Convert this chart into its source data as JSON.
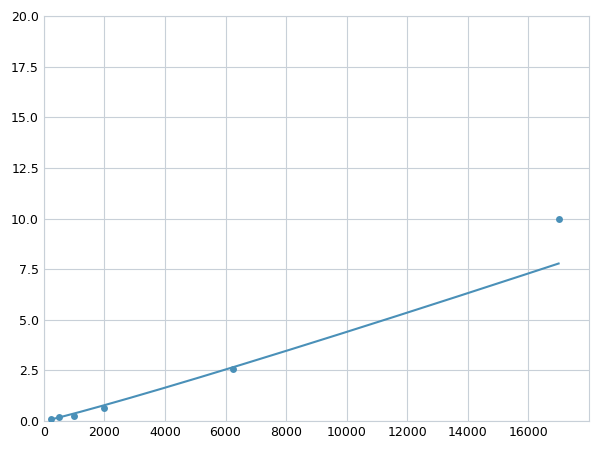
{
  "x_points": [
    250,
    500,
    1000,
    2000,
    6250,
    17000
  ],
  "y_points": [
    0.12,
    0.18,
    0.25,
    0.65,
    2.55,
    10.0
  ],
  "marker_indices": [
    0,
    1,
    2,
    3,
    4,
    5
  ],
  "line_color": "#4a90b8",
  "marker_color": "#4a90b8",
  "marker_size": 5,
  "xlim": [
    0,
    18000
  ],
  "ylim": [
    0,
    20.0
  ],
  "xticks": [
    0,
    2000,
    4000,
    6000,
    8000,
    10000,
    12000,
    14000,
    16000
  ],
  "yticks": [
    0.0,
    2.5,
    5.0,
    7.5,
    10.0,
    12.5,
    15.0,
    17.5,
    20.0
  ],
  "grid_color": "#c8d0d8",
  "background_color": "#ffffff",
  "line_width": 1.5,
  "figsize": [
    6.0,
    4.5
  ],
  "dpi": 100
}
